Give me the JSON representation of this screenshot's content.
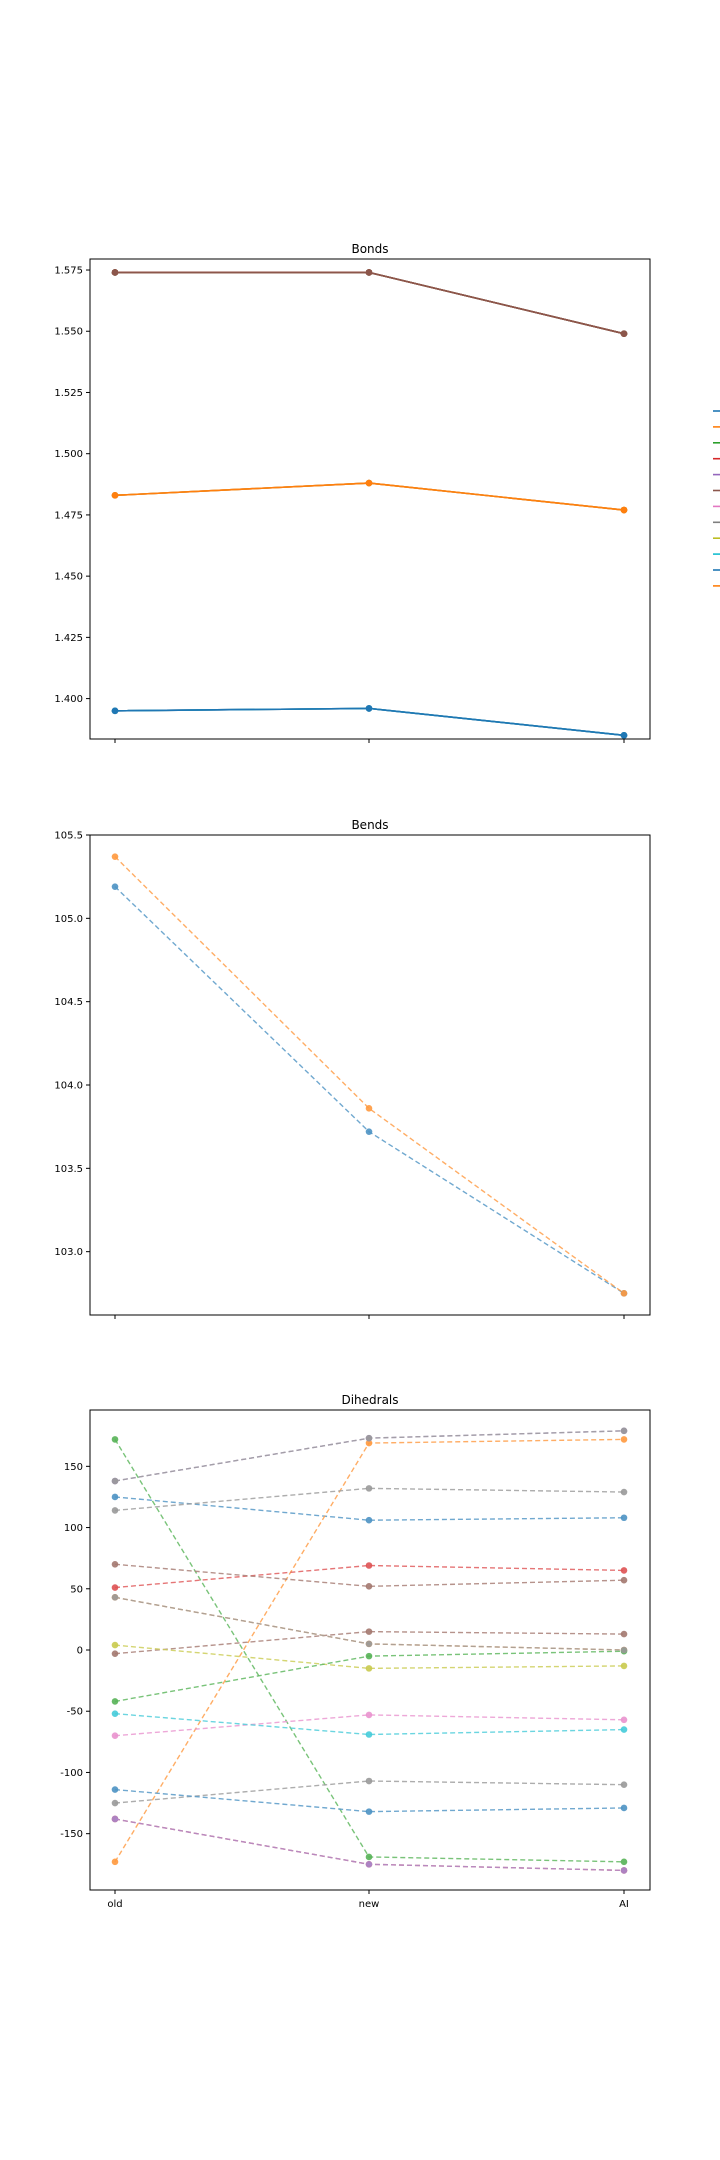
{
  "chart_data": [
    {
      "type": "line",
      "title": "Bonds",
      "categories": [
        "old",
        "new",
        "AI"
      ],
      "show_xticklabels": false,
      "yticks": [
        "1.400",
        "1.425",
        "1.450",
        "1.475",
        "1.500",
        "1.525",
        "1.550",
        "1.575"
      ],
      "ylim": [
        1.3835,
        1.5795
      ],
      "line_style": "solid",
      "legend": "right, outside plot, entries unlabeled",
      "series": [
        {
          "color": "#1f77b4",
          "values": [
            1.574,
            1.574,
            1.549
          ]
        },
        {
          "color": "#ff7f0e",
          "values": [
            1.483,
            1.488,
            1.477
          ]
        },
        {
          "color": "#2ca02c",
          "values": [
            1.574,
            1.574,
            1.549
          ]
        },
        {
          "color": "#d62728",
          "values": [
            1.574,
            1.574,
            1.549
          ]
        },
        {
          "color": "#9467bd",
          "values": [
            1.395,
            1.396,
            1.385
          ]
        },
        {
          "color": "#8c564b",
          "values": [
            1.574,
            1.574,
            1.549
          ]
        },
        {
          "color": "#e377c2",
          "values": [
            1.483,
            1.488,
            1.477
          ]
        },
        {
          "color": "#7f7f7f",
          "values": [
            1.395,
            1.396,
            1.385
          ]
        },
        {
          "color": "#bcbd22",
          "values": [
            1.483,
            1.488,
            1.477
          ]
        },
        {
          "color": "#17becf",
          "values": [
            1.395,
            1.396,
            1.385
          ]
        },
        {
          "color": "#1f77b4",
          "values": [
            1.395,
            1.396,
            1.385
          ]
        },
        {
          "color": "#ff7f0e",
          "values": [
            1.483,
            1.488,
            1.477
          ]
        }
      ]
    },
    {
      "type": "line",
      "title": "Bends",
      "categories": [
        "old",
        "new",
        "AI"
      ],
      "show_xticklabels": false,
      "yticks": [
        "103.0",
        "103.5",
        "104.0",
        "104.5",
        "105.0",
        "105.5"
      ],
      "ylim": [
        102.62,
        105.5
      ],
      "line_style": "dashed",
      "series": [
        {
          "color": "#1f77b4",
          "values": [
            105.19,
            103.72,
            102.75
          ]
        },
        {
          "color": "#ff7f0e",
          "values": [
            105.37,
            103.86,
            102.75
          ]
        }
      ]
    },
    {
      "type": "line",
      "title": "Dihedrals",
      "categories": [
        "old",
        "new",
        "AI"
      ],
      "show_xticklabels": true,
      "yticks": [
        "-150",
        "-100",
        "-50",
        "0",
        "50",
        "100",
        "150"
      ],
      "ylim": [
        -196,
        196
      ],
      "line_style": "dashed",
      "series": [
        {
          "color": "#1f77b4",
          "values": [
            125,
            106,
            108
          ]
        },
        {
          "color": "#ff7f0e",
          "values": [
            -173,
            169,
            172
          ]
        },
        {
          "color": "#2ca02c",
          "values": [
            172,
            -169,
            -173
          ]
        },
        {
          "color": "#d62728",
          "values": [
            51,
            69,
            65
          ]
        },
        {
          "color": "#9467bd",
          "values": [
            138,
            173,
            179
          ]
        },
        {
          "color": "#8c564b",
          "values": [
            -3,
            15,
            13
          ]
        },
        {
          "color": "#e377c2",
          "values": [
            -70,
            -53,
            -57
          ]
        },
        {
          "color": "#7f7f7f",
          "values": [
            -125,
            -107,
            -110
          ]
        },
        {
          "color": "#bcbd22",
          "values": [
            4,
            -15,
            -13
          ]
        },
        {
          "color": "#17becf",
          "values": [
            -52,
            -69,
            -65
          ]
        },
        {
          "color": "#1f77b4",
          "values": [
            -114,
            -132,
            -129
          ]
        },
        {
          "color": "#ff7f0e",
          "values": [
            43,
            5,
            0
          ]
        },
        {
          "color": "#2ca02c",
          "values": [
            -42,
            -5,
            -1
          ]
        },
        {
          "color": "#d62728",
          "values": [
            -138,
            -175,
            -180
          ]
        },
        {
          "color": "#9467bd",
          "values": [
            -138,
            -175,
            -180
          ]
        },
        {
          "color": "#8c564b",
          "values": [
            70,
            52,
            57
          ]
        },
        {
          "color": "#7f7f7f",
          "values": [
            114,
            132,
            129
          ]
        },
        {
          "color": "#7f7f7f",
          "values": [
            138,
            173,
            179
          ]
        },
        {
          "color": "#7f7f7f",
          "values": [
            43,
            5,
            0
          ]
        }
      ]
    }
  ]
}
